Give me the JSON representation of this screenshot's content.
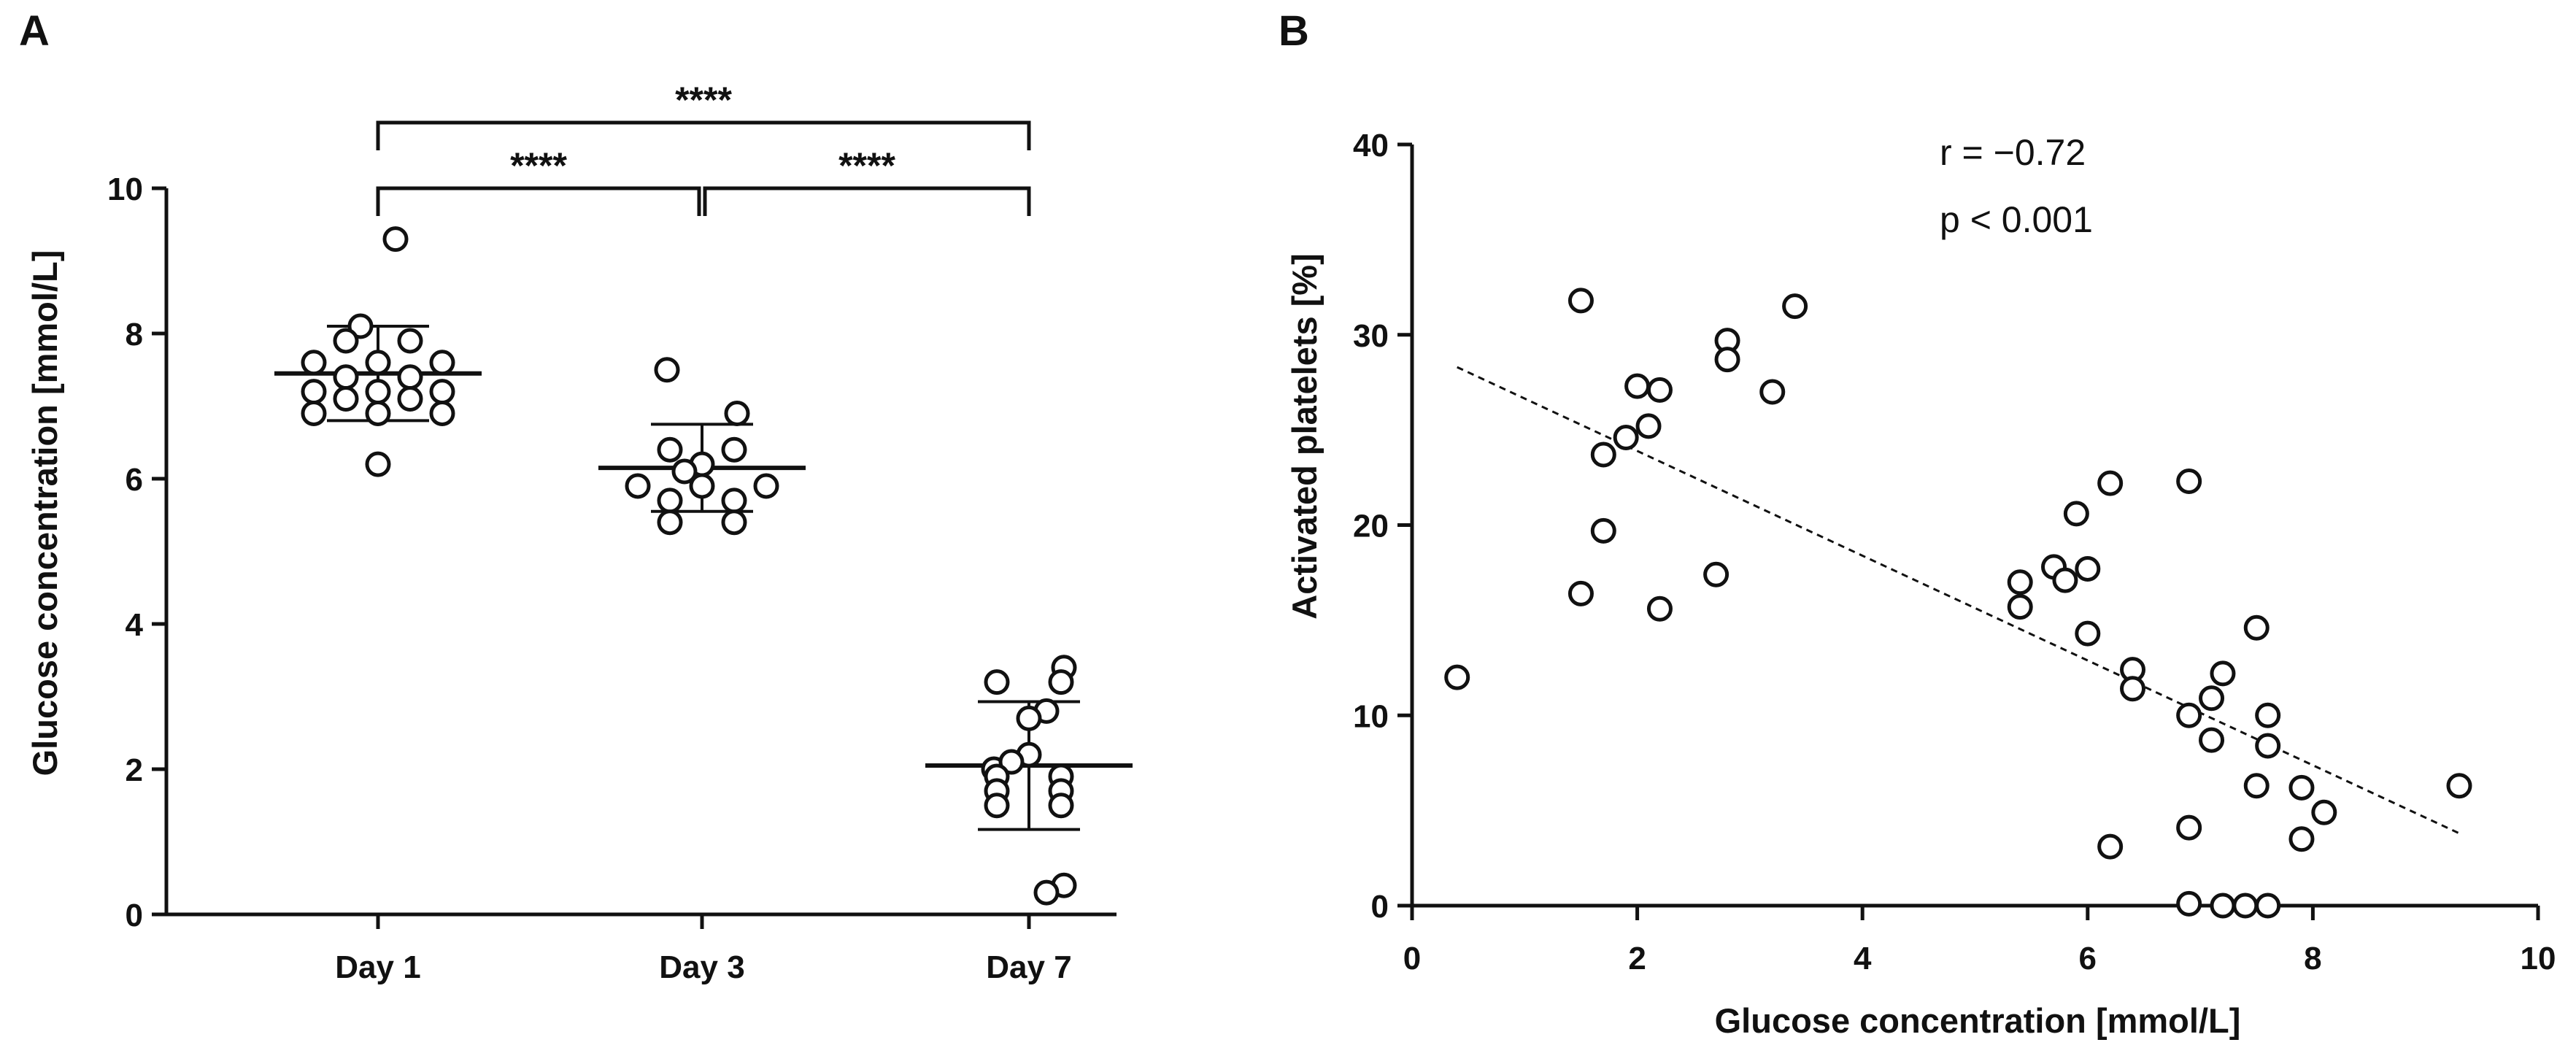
{
  "chart_data": [
    {
      "panel": "A",
      "type": "scatter",
      "title": "",
      "xlabel": "",
      "ylabel": "Glucose concentration [mmol/L]",
      "categories": [
        "Day 1",
        "Day 3",
        "Day 7"
      ],
      "ylim": [
        0,
        10
      ],
      "yticks": [
        "0",
        "2",
        "4",
        "6",
        "8",
        "10"
      ],
      "grid": false,
      "series": [
        {
          "name": "Day 1",
          "values": [
            9.3,
            8.1,
            7.9,
            7.9,
            7.6,
            7.6,
            7.6,
            7.4,
            7.4,
            7.2,
            7.2,
            7.2,
            7.1,
            7.1,
            6.9,
            6.9,
            6.9,
            6.2
          ],
          "mean": 7.45,
          "sd": 0.65
        },
        {
          "name": "Day 3",
          "values": [
            7.5,
            6.9,
            6.4,
            6.4,
            6.2,
            6.1,
            5.9,
            5.9,
            5.9,
            5.7,
            5.7,
            5.4,
            5.4
          ],
          "mean": 6.15,
          "sd": 0.6
        },
        {
          "name": "Day 7",
          "values": [
            3.4,
            3.2,
            3.2,
            2.8,
            2.7,
            2.2,
            2.1,
            2.0,
            1.9,
            1.9,
            1.7,
            1.7,
            1.5,
            1.5,
            0.4,
            0.3
          ],
          "mean": 2.05,
          "sd": 0.88
        }
      ],
      "comparisons": [
        {
          "from": "Day 1",
          "to": "Day 7",
          "label": "****"
        },
        {
          "from": "Day 1",
          "to": "Day 3",
          "label": "****"
        },
        {
          "from": "Day 3",
          "to": "Day 7",
          "label": "****"
        }
      ]
    },
    {
      "panel": "B",
      "type": "scatter",
      "title": "",
      "xlabel": "Glucose concentration [mmol/L]",
      "ylabel": "Activated platelets [%]",
      "xlim": [
        0,
        10
      ],
      "ylim": [
        0,
        40
      ],
      "xticks": [
        "0",
        "2",
        "4",
        "6",
        "8",
        "10"
      ],
      "yticks": [
        "0",
        "10",
        "20",
        "30",
        "40"
      ],
      "grid": false,
      "annotations": [
        "r = −0.72",
        "p < 0.001"
      ],
      "trendline": {
        "style": "dashed",
        "x": [
          0.4,
          9.3
        ],
        "y": [
          28.3,
          3.8
        ]
      },
      "points": [
        [
          0.4,
          12.0
        ],
        [
          1.5,
          31.8
        ],
        [
          1.5,
          16.4
        ],
        [
          1.7,
          23.7
        ],
        [
          1.7,
          19.7
        ],
        [
          1.9,
          24.6
        ],
        [
          2.0,
          27.3
        ],
        [
          2.1,
          25.2
        ],
        [
          2.2,
          27.1
        ],
        [
          2.2,
          15.6
        ],
        [
          2.7,
          17.4
        ],
        [
          2.8,
          29.7
        ],
        [
          2.8,
          28.7
        ],
        [
          3.2,
          27.0
        ],
        [
          3.4,
          31.5
        ],
        [
          5.4,
          17.0
        ],
        [
          5.4,
          15.7
        ],
        [
          5.7,
          17.8
        ],
        [
          5.8,
          17.1
        ],
        [
          5.9,
          20.6
        ],
        [
          6.0,
          17.7
        ],
        [
          6.0,
          14.3
        ],
        [
          6.2,
          22.2
        ],
        [
          6.2,
          3.1
        ],
        [
          6.4,
          12.4
        ],
        [
          6.4,
          11.4
        ],
        [
          6.9,
          22.3
        ],
        [
          6.9,
          10.0
        ],
        [
          6.9,
          4.1
        ],
        [
          6.9,
          0.1
        ],
        [
          7.1,
          10.9
        ],
        [
          7.1,
          8.7
        ],
        [
          7.2,
          12.2
        ],
        [
          7.2,
          0.0
        ],
        [
          7.4,
          0.0
        ],
        [
          7.5,
          14.6
        ],
        [
          7.5,
          6.3
        ],
        [
          7.6,
          10.0
        ],
        [
          7.6,
          8.4
        ],
        [
          7.6,
          0.0
        ],
        [
          7.9,
          6.2
        ],
        [
          7.9,
          3.5
        ],
        [
          8.1,
          4.9
        ],
        [
          9.3,
          6.3
        ]
      ]
    }
  ]
}
